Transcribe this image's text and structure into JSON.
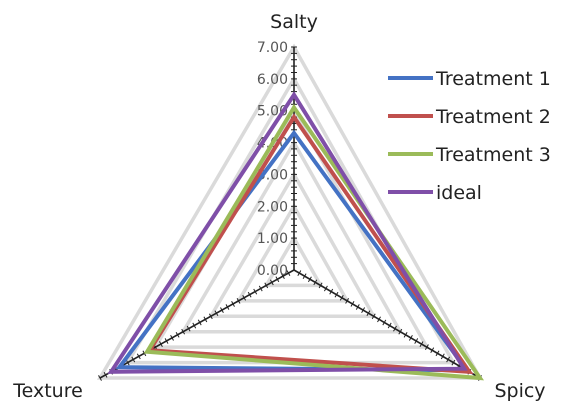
{
  "chart_data": {
    "type": "radar",
    "axes": [
      "Salty",
      "Spicy",
      "Texture"
    ],
    "r_range": [
      0,
      7
    ],
    "ticks": [
      "0.00",
      "1.00",
      "2.00",
      "3.00",
      "4.00",
      "5.00",
      "6.00",
      "7.00"
    ],
    "grid": true,
    "legend_position": "right",
    "series": [
      {
        "name": "Treatment 1",
        "color": "#4472C4",
        "values": [
          4.3,
          6.5,
          6.3
        ]
      },
      {
        "name": "Treatment 2",
        "color": "#C0504D",
        "values": [
          4.8,
          6.6,
          5.2
        ]
      },
      {
        "name": "Treatment 3",
        "color": "#9BBB59",
        "values": [
          5.1,
          7.0,
          5.3
        ]
      },
      {
        "name": "ideal",
        "color": "#7F4FA8",
        "values": [
          5.5,
          6.4,
          6.6
        ]
      }
    ]
  }
}
